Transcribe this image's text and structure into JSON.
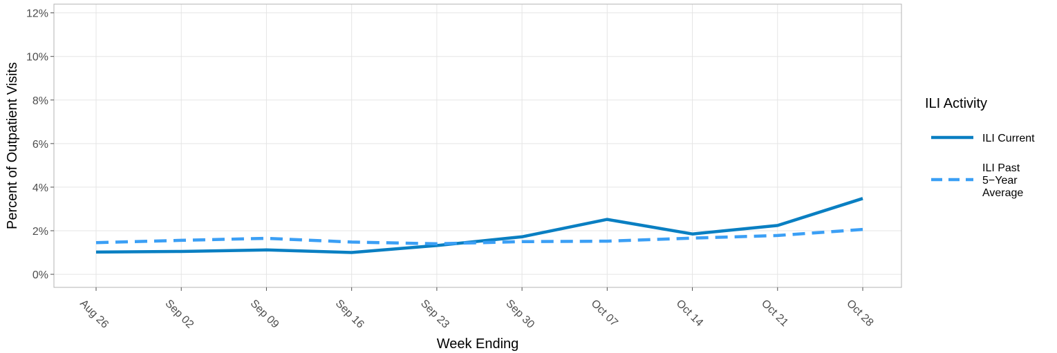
{
  "chart_data": {
    "type": "line",
    "xlabel": "Week Ending",
    "ylabel": "Percent of Outpatient Visits",
    "categories": [
      "Aug 26",
      "Sep 02",
      "Sep 09",
      "Sep 16",
      "Sep 23",
      "Sep 30",
      "Oct 07",
      "Oct 14",
      "Oct 21",
      "Oct 28"
    ],
    "ylim": [
      -0.6,
      12.4
    ],
    "yticks": [
      0,
      2,
      4,
      6,
      8,
      10,
      12
    ],
    "ytick_labels": [
      "0%",
      "2%",
      "4%",
      "6%",
      "8%",
      "10%",
      "12%"
    ],
    "grid": true,
    "legend": {
      "title": "ILI Activity",
      "position": "right"
    },
    "series": [
      {
        "name": "ILI Current",
        "legend_lines": [
          "ILI Current"
        ],
        "style": "solid",
        "color": "#0a7fc2",
        "values": [
          1.02,
          1.05,
          1.12,
          1.0,
          1.32,
          1.72,
          2.52,
          1.85,
          2.24,
          3.48
        ]
      },
      {
        "name": "ILI Past 5−Year Average",
        "legend_lines": [
          "ILI Past",
          "5−Year",
          "Average"
        ],
        "style": "dashed",
        "color": "#3b9ff5",
        "values": [
          1.45,
          1.56,
          1.65,
          1.48,
          1.4,
          1.5,
          1.52,
          1.66,
          1.78,
          2.06
        ]
      }
    ]
  }
}
